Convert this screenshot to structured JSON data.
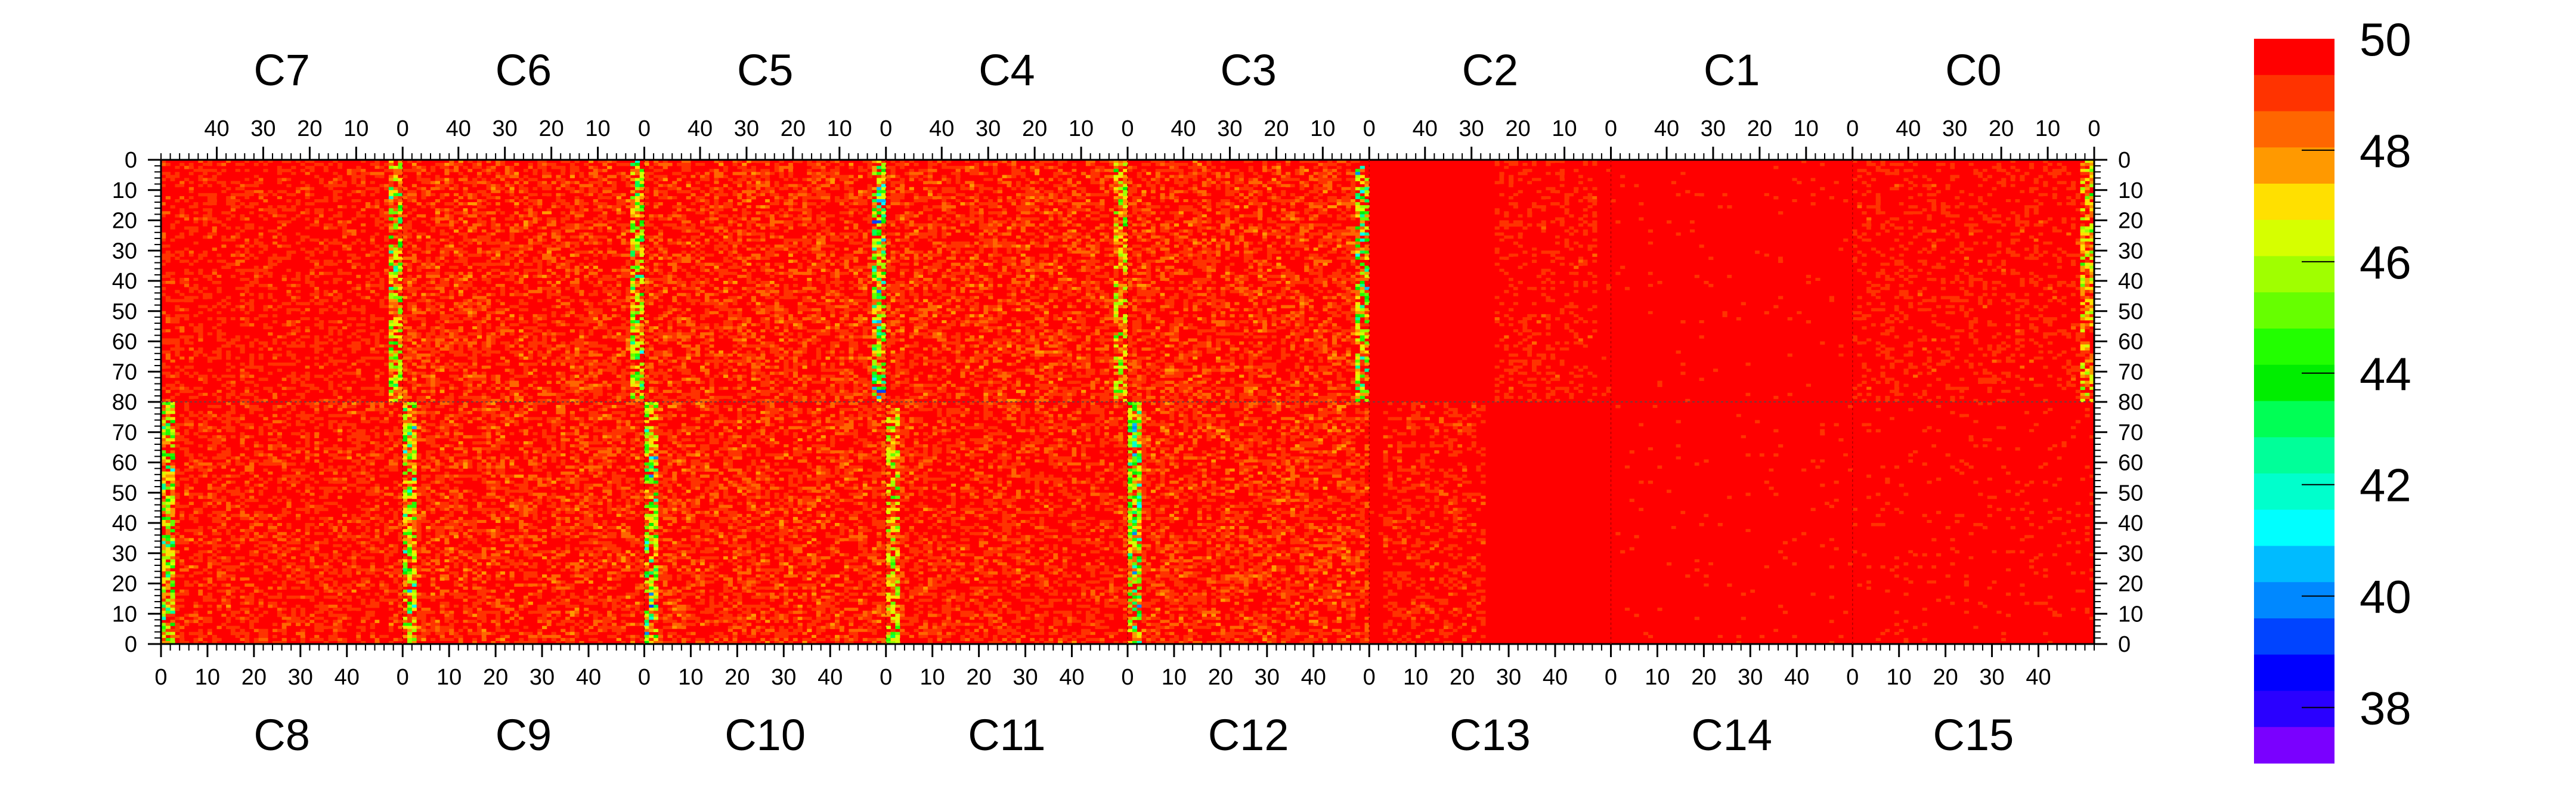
{
  "chart_data": {
    "type": "heatmap",
    "top_chip_labels": [
      "C7",
      "C6",
      "C5",
      "C4",
      "C3",
      "C2",
      "C1",
      "C0"
    ],
    "bottom_chip_labels": [
      "C8",
      "C9",
      "C10",
      "C11",
      "C12",
      "C13",
      "C14",
      "C15"
    ],
    "top_x_ticks": [
      "40",
      "30",
      "20",
      "10",
      "0"
    ],
    "bottom_x_ticks": [
      "0",
      "10",
      "20",
      "30",
      "40"
    ],
    "y_ticks_top_half": [
      "0",
      "10",
      "20",
      "30",
      "40",
      "50",
      "60",
      "70",
      "80"
    ],
    "y_ticks_bottom_half": [
      "70",
      "60",
      "50",
      "40",
      "30",
      "20",
      "10",
      "0"
    ],
    "columns_per_chip": 52,
    "rows_per_half": 80,
    "colorbar": {
      "range": [
        37,
        50
      ],
      "tick_labels": [
        "50",
        "48",
        "46",
        "44",
        "42",
        "40",
        "38"
      ],
      "colors": [
        "#FF0000",
        "#FF3300",
        "#FF6600",
        "#FF9900",
        "#FFE000",
        "#D6FF00",
        "#A0FF00",
        "#66FF00",
        "#22FF00",
        "#00EE00",
        "#00FF55",
        "#00FF99",
        "#00FFCC",
        "#00FFFF",
        "#00BBFF",
        "#0088FF",
        "#0044FF",
        "#0000FF",
        "#2A00FF",
        "#7A00FF"
      ]
    },
    "typical_value": 50,
    "column_band_profile": {
      "top_row": [
        {
          "chip": "C7",
          "band_near_col0": 47.3,
          "background_mean": 49.6
        },
        {
          "chip": "C6",
          "band_near_col0": 47.3,
          "background_mean": 49.4
        },
        {
          "chip": "C5",
          "band_near_col0": 46.5,
          "background_mean": 49.4
        },
        {
          "chip": "C4",
          "band_near_col0": 48.0,
          "background_mean": 49.4
        },
        {
          "chip": "C3",
          "band_near_col0": 46.8,
          "background_mean": 49.4
        },
        {
          "chip": "C2",
          "band_near_col0": 49.9,
          "background_mean": 49.7,
          "flat_from_col": 25
        },
        {
          "chip": "C1",
          "band_near_col0": 49.9,
          "background_mean": 49.9
        },
        {
          "chip": "C0",
          "band_near_col0": 48.2,
          "background_mean": 49.7
        }
      ],
      "bottom_row": [
        {
          "chip": "C8",
          "band_near_col0": 47.3,
          "background_mean": 49.5
        },
        {
          "chip": "C9",
          "band_near_col0": 47.3,
          "background_mean": 49.4
        },
        {
          "chip": "C10",
          "band_near_col0": 46.7,
          "background_mean": 49.4
        },
        {
          "chip": "C11",
          "band_near_col0": 48.0,
          "background_mean": 49.5
        },
        {
          "chip": "C12",
          "band_near_col0": 46.8,
          "background_mean": 49.4
        },
        {
          "chip": "C13",
          "band_near_col0": 49.9,
          "background_mean": 49.6,
          "flat_from_col": 25
        },
        {
          "chip": "C14",
          "band_near_col0": 49.9,
          "background_mean": 49.9
        },
        {
          "chip": "C15",
          "band_near_col0": 49.9,
          "background_mean": 49.85
        }
      ]
    }
  }
}
